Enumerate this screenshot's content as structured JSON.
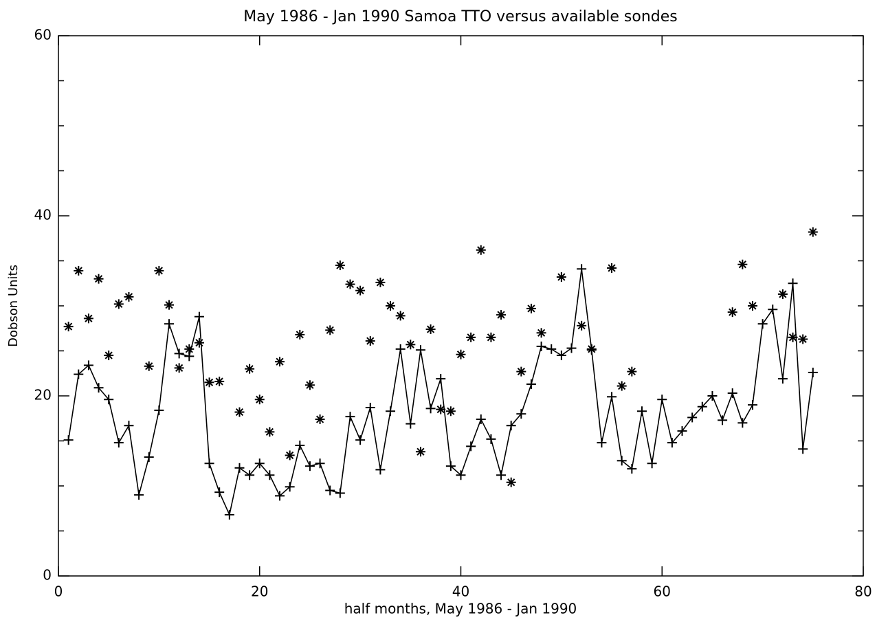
{
  "chart_data": {
    "type": "line",
    "title": "May 1986 - Jan 1990 Samoa TTO versus available sondes",
    "xlabel": "half months, May 1986 - Jan 1990",
    "ylabel": "Dobson Units",
    "xlim": [
      0,
      80
    ],
    "xticks": [
      0,
      20,
      40,
      60,
      80
    ],
    "ylim": [
      0,
      60
    ],
    "yticks": [
      0,
      20,
      40,
      60
    ],
    "yminor": [
      5,
      10,
      15,
      25,
      30,
      35,
      45,
      50,
      55
    ],
    "series": [
      {
        "type": "line",
        "color": "#000000",
        "marker": "plus",
        "x": [
          1,
          2,
          3,
          4,
          5,
          6,
          7,
          8,
          9,
          10,
          11,
          12,
          13,
          14,
          15,
          16,
          17,
          18,
          19,
          20,
          21,
          22,
          23,
          24,
          25,
          26,
          27,
          28,
          29,
          30,
          31,
          32,
          33,
          34,
          35,
          36,
          37,
          38,
          39,
          40,
          41,
          42,
          43,
          44,
          45,
          46,
          47,
          48,
          49,
          50,
          51,
          52,
          53,
          54,
          55,
          56,
          57,
          58,
          59,
          60,
          61,
          62,
          63,
          64,
          65,
          66,
          67,
          68,
          69,
          70,
          71,
          72,
          73,
          74,
          75
        ],
        "values": [
          15.1,
          22.4,
          23.4,
          20.9,
          19.6,
          14.8,
          16.7,
          9.0,
          13.2,
          18.4,
          28.0,
          24.7,
          24.4,
          28.8,
          12.5,
          9.3,
          6.8,
          12.0,
          11.2,
          12.5,
          11.2,
          8.9,
          9.9,
          14.5,
          12.2,
          12.5,
          9.5,
          9.2,
          17.7,
          15.1,
          18.7,
          11.8,
          18.3,
          25.2,
          16.9,
          25.1,
          18.6,
          21.9,
          12.2,
          11.2,
          14.4,
          17.4,
          15.2,
          11.2,
          16.7,
          18.0,
          21.3,
          25.5,
          25.2,
          24.5,
          25.3,
          34.1,
          25.1,
          14.8,
          19.9,
          12.8,
          11.9,
          18.3,
          12.5,
          19.6,
          14.8,
          16.1,
          17.6,
          18.8,
          20.0,
          17.3,
          20.3,
          17.0,
          19.0,
          28.0,
          29.6,
          21.9,
          32.5,
          14.1,
          22.6
        ]
      },
      {
        "type": "scatter",
        "color": "#000000",
        "marker": "asterisk",
        "x": [
          1,
          2,
          3,
          4,
          5,
          6,
          7,
          9,
          10,
          11,
          12,
          13,
          14,
          15,
          16,
          18,
          19,
          20,
          21,
          22,
          23,
          24,
          25,
          26,
          27,
          28,
          29,
          30,
          31,
          32,
          33,
          34,
          35,
          36,
          37,
          38,
          39,
          40,
          41,
          42,
          43,
          44,
          45,
          46,
          47,
          48,
          50,
          52,
          53,
          55,
          56,
          57,
          67,
          68,
          69,
          72,
          73,
          74,
          75
        ],
        "values": [
          27.7,
          33.9,
          28.6,
          33.0,
          24.5,
          30.2,
          31.0,
          23.3,
          33.9,
          30.1,
          23.1,
          25.2,
          25.9,
          21.5,
          21.6,
          18.2,
          23.0,
          19.6,
          16.0,
          23.8,
          13.4,
          26.8,
          21.2,
          17.4,
          27.3,
          34.5,
          32.4,
          31.7,
          26.1,
          32.6,
          30.0,
          28.9,
          25.7,
          13.8,
          27.4,
          18.5,
          18.3,
          24.6,
          26.5,
          36.2,
          26.5,
          29.0,
          10.4,
          22.7,
          29.7,
          27.0,
          33.2,
          27.8,
          25.2,
          34.2,
          21.1,
          22.7,
          29.3,
          34.6,
          30.0,
          31.3,
          26.5,
          26.3,
          38.2
        ]
      }
    ]
  }
}
